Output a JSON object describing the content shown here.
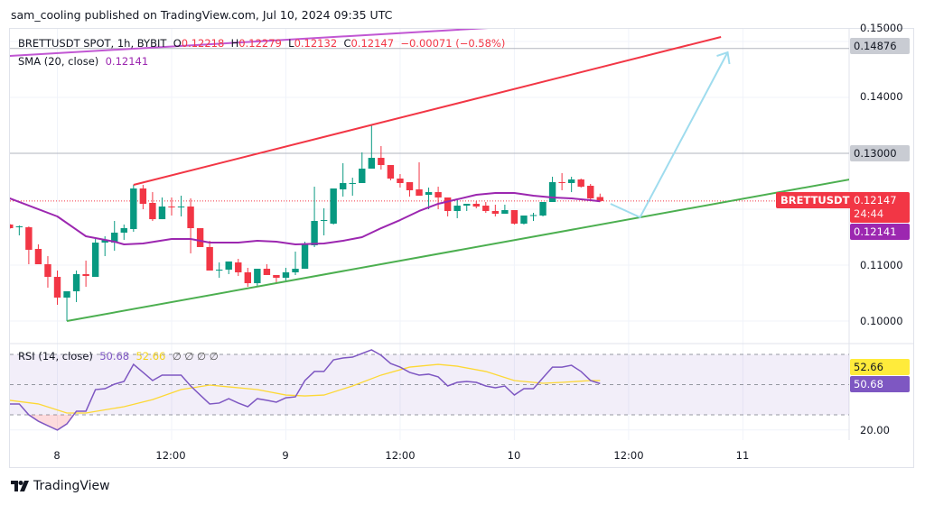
{
  "header": {
    "text": "sam_cooling published on TradingView.com, Jul 10, 2024 09:35 UTC"
  },
  "legend": {
    "symbol": "BRETTUSDT SPOT, 1h, BYBIT",
    "o_label": "O",
    "o": "0.12218",
    "h_label": "H",
    "h": "0.12279",
    "l_label": "L",
    "l": "0.12132",
    "c_label": "C",
    "c": "0.12147",
    "change": "−0.00071 (−0.58%)",
    "sma_label": "SMA (20, close)",
    "sma_value": "0.12141",
    "rsi_label": "RSI (14, close)",
    "rsi_value": "50.68",
    "rsi_ma_value": "52.66",
    "rsi_extra": "∅ ∅ ∅ ∅"
  },
  "price_axis": {
    "ticks": [
      "0.15000",
      "0.14000",
      "0.11000",
      "0.10000"
    ],
    "tick_values": [
      0.15,
      0.14,
      0.11,
      0.1
    ],
    "hline_1": "0.14876",
    "hline_2": "0.13000",
    "symbol_tag": "BRETTUSDT",
    "last_price": "0.12147",
    "countdown": "24:44",
    "sma_tag": "0.12141"
  },
  "rsi_axis": {
    "ma_tag": "52.66",
    "rsi_tag": "50.68",
    "tick": "20.00",
    "upper_band": 70,
    "middle_band": 50,
    "lower_band": 30
  },
  "time_axis": {
    "labels": [
      "8",
      "12:00",
      "9",
      "12:00",
      "10",
      "12:00",
      "11"
    ]
  },
  "brand": {
    "name": "TradingView"
  },
  "colors": {
    "up": "#089981",
    "down": "#f23645",
    "sma": "#9c27b0",
    "rsi": "#7e57c2",
    "rsi_ma": "#fdd835",
    "resistance": "#f23645",
    "support": "#4caf50",
    "projection": "#9fdcee",
    "upper_line": "#c157d3"
  },
  "chart_data": {
    "type": "candlestick",
    "interval": "1h",
    "first_candle": "Jul 7 19:00",
    "candles_ohlc": [
      [
        0.11726,
        0.11742,
        0.11645,
        0.11661
      ],
      [
        0.11677,
        0.1171,
        0.11532,
        0.11693
      ],
      [
        0.11677,
        0.11693,
        0.11016,
        0.11274
      ],
      [
        0.1129,
        0.11371,
        0.11016,
        0.11016
      ],
      [
        0.11016,
        0.11161,
        0.10597,
        0.1079
      ],
      [
        0.1079,
        0.10903,
        0.1029,
        0.10419
      ],
      [
        0.10419,
        0.10532,
        0.1,
        0.10532
      ],
      [
        0.10532,
        0.10903,
        0.10339,
        0.10839
      ],
      [
        0.10839,
        0.11081,
        0.10613,
        0.10806
      ],
      [
        0.1079,
        0.11468,
        0.1079,
        0.11403
      ],
      [
        0.11403,
        0.11516,
        0.11161,
        0.11452
      ],
      [
        0.11403,
        0.1179,
        0.11258,
        0.11581
      ],
      [
        0.11581,
        0.11726,
        0.11452,
        0.11661
      ],
      [
        0.11645,
        0.12435,
        0.11597,
        0.12371
      ],
      [
        0.12371,
        0.12435,
        0.12,
        0.12097
      ],
      [
        0.12113,
        0.12306,
        0.1179,
        0.11822
      ],
      [
        0.11822,
        0.1221,
        0.11822,
        0.12048
      ],
      [
        0.12048,
        0.1221,
        0.11887,
        0.1204
      ],
      [
        0.1204,
        0.12242,
        0.11871,
        0.12048
      ],
      [
        0.12048,
        0.12194,
        0.1121,
        0.11661
      ],
      [
        0.11661,
        0.11661,
        0.11323,
        0.11323
      ],
      [
        0.11323,
        0.11435,
        0.10903,
        0.10903
      ],
      [
        0.10903,
        0.11048,
        0.10774,
        0.10919
      ],
      [
        0.10919,
        0.11065,
        0.10839,
        0.11065
      ],
      [
        0.11048,
        0.11113,
        0.10806,
        0.10871
      ],
      [
        0.10871,
        0.10952,
        0.10613,
        0.10677
      ],
      [
        0.10677,
        0.10935,
        0.10613,
        0.10935
      ],
      [
        0.10935,
        0.11016,
        0.10823,
        0.10823
      ],
      [
        0.10823,
        0.10823,
        0.10694,
        0.10774
      ],
      [
        0.10774,
        0.10952,
        0.10726,
        0.10871
      ],
      [
        0.10871,
        0.11242,
        0.10823,
        0.10935
      ],
      [
        0.10935,
        0.11419,
        0.10935,
        0.11387
      ],
      [
        0.11355,
        0.12403,
        0.11323,
        0.1179
      ],
      [
        0.1179,
        0.12016,
        0.11532,
        0.11806
      ],
      [
        0.11742,
        0.12371,
        0.11726,
        0.12371
      ],
      [
        0.12355,
        0.12823,
        0.12226,
        0.12468
      ],
      [
        0.12452,
        0.12564,
        0.12242,
        0.12468
      ],
      [
        0.12468,
        0.13016,
        0.12468,
        0.12726
      ],
      [
        0.12726,
        0.13516,
        0.12726,
        0.12919
      ],
      [
        0.12919,
        0.13129,
        0.1271,
        0.1279
      ],
      [
        0.1279,
        0.1279,
        0.12516,
        0.12548
      ],
      [
        0.12548,
        0.12629,
        0.12387,
        0.12468
      ],
      [
        0.12484,
        0.12484,
        0.12226,
        0.12339
      ],
      [
        0.12355,
        0.12839,
        0.12242,
        0.12242
      ],
      [
        0.12258,
        0.12387,
        0.12,
        0.12306
      ],
      [
        0.12306,
        0.12403,
        0.12,
        0.1221
      ],
      [
        0.1221,
        0.1221,
        0.11871,
        0.11968
      ],
      [
        0.11968,
        0.12161,
        0.11839,
        0.12064
      ],
      [
        0.12064,
        0.12097,
        0.11968,
        0.12097
      ],
      [
        0.12097,
        0.12145,
        0.12016,
        0.12048
      ],
      [
        0.12064,
        0.12129,
        0.11935,
        0.11968
      ],
      [
        0.11968,
        0.12081,
        0.11871,
        0.11919
      ],
      [
        0.11919,
        0.12081,
        0.11919,
        0.11984
      ],
      [
        0.11984,
        0.11984,
        0.11726,
        0.11742
      ],
      [
        0.11742,
        0.11887,
        0.11726,
        0.11887
      ],
      [
        0.11887,
        0.11935,
        0.1179,
        0.11895
      ],
      [
        0.11887,
        0.12129,
        0.11871,
        0.12129
      ],
      [
        0.12129,
        0.12581,
        0.12129,
        0.12484
      ],
      [
        0.12484,
        0.12645,
        0.12339,
        0.12476
      ],
      [
        0.12468,
        0.12581,
        0.12306,
        0.12532
      ],
      [
        0.12532,
        0.12548,
        0.12387,
        0.12403
      ],
      [
        0.12419,
        0.12452,
        0.12161,
        0.12194
      ],
      [
        0.12218,
        0.12279,
        0.12132,
        0.12147
      ]
    ],
    "sma_20_points": [
      [
        0,
        0.12194
      ],
      [
        5,
        0.11871
      ],
      [
        8,
        0.11516
      ],
      [
        11,
        0.11419
      ],
      [
        12,
        0.11371
      ],
      [
        14,
        0.11387
      ],
      [
        17,
        0.11468
      ],
      [
        19,
        0.11468
      ],
      [
        21,
        0.11403
      ],
      [
        24,
        0.11403
      ],
      [
        26,
        0.11435
      ],
      [
        28,
        0.11419
      ],
      [
        30,
        0.11371
      ],
      [
        33,
        0.11387
      ],
      [
        35,
        0.11435
      ],
      [
        37,
        0.115
      ],
      [
        39,
        0.11661
      ],
      [
        41,
        0.11806
      ],
      [
        43,
        0.11968
      ],
      [
        45,
        0.12097
      ],
      [
        47,
        0.12177
      ],
      [
        49,
        0.12258
      ],
      [
        51,
        0.1229
      ],
      [
        53,
        0.1229
      ],
      [
        55,
        0.12242
      ],
      [
        57,
        0.1221
      ],
      [
        59,
        0.12194
      ],
      [
        61,
        0.12161
      ],
      [
        62,
        0.12141
      ]
    ],
    "rsi": [
      37.2,
      37.2,
      30.0,
      25.8,
      22.8,
      19.9,
      24.0,
      32.4,
      32.4,
      46.7,
      47.3,
      50.3,
      52.1,
      63.4,
      58.1,
      52.7,
      56.3,
      56.3,
      56.3,
      49.1,
      43.1,
      37.2,
      37.8,
      40.7,
      37.8,
      35.4,
      40.7,
      39.6,
      38.4,
      41.3,
      41.9,
      52.7,
      58.7,
      58.7,
      66.4,
      67.6,
      68.2,
      70.6,
      73.0,
      69.4,
      64.0,
      61.6,
      58.1,
      56.3,
      56.9,
      55.1,
      49.1,
      51.5,
      52.1,
      51.5,
      49.1,
      47.9,
      49.1,
      43.1,
      47.3,
      47.3,
      54.5,
      61.6,
      61.6,
      62.8,
      58.7,
      52.7,
      50.68
    ],
    "rsi_ma_points": [
      [
        0,
        39.6
      ],
      [
        3,
        37.2
      ],
      [
        6,
        31.2
      ],
      [
        8,
        31.2
      ],
      [
        12,
        35.4
      ],
      [
        15,
        40.1
      ],
      [
        18,
        46.7
      ],
      [
        21,
        49.7
      ],
      [
        26,
        46.7
      ],
      [
        29,
        43.1
      ],
      [
        31,
        42.5
      ],
      [
        33,
        43.1
      ],
      [
        36,
        49.1
      ],
      [
        39,
        56.3
      ],
      [
        42,
        61.6
      ],
      [
        45,
        63.4
      ],
      [
        47,
        62.2
      ],
      [
        50,
        58.7
      ],
      [
        53,
        52.7
      ],
      [
        56,
        50.9
      ],
      [
        58,
        51.5
      ],
      [
        61,
        52.7
      ],
      [
        62,
        52.66
      ]
    ],
    "drawings": {
      "resistance_line": [
        [
          13,
          0.12435
        ],
        [
          74.7,
          0.15081
        ]
      ],
      "support_line": [
        [
          6,
          0.1
        ],
        [
          88.2,
          0.12532
        ]
      ],
      "projection_arrow": [
        [
          63.1,
          0.12097
        ],
        [
          66.2,
          0.11855
        ],
        [
          75.4,
          0.14806
        ]
      ],
      "upper_line": [
        [
          0,
          0.14742
        ],
        [
          50.3,
          0.15242
        ]
      ],
      "horizontal_levels": [
        0.14876,
        0.13
      ]
    }
  }
}
